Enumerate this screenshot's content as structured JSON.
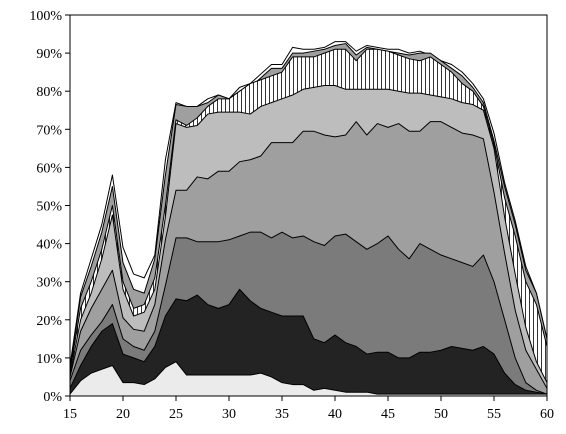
{
  "chart_data": {
    "type": "area",
    "stacked": true,
    "percent_axis": true,
    "x": [
      15,
      16,
      17,
      18,
      19,
      20,
      21,
      22,
      23,
      24,
      25,
      26,
      27,
      28,
      29,
      30,
      31,
      32,
      33,
      34,
      35,
      36,
      37,
      38,
      39,
      40,
      41,
      42,
      43,
      44,
      45,
      46,
      47,
      48,
      49,
      50,
      51,
      52,
      53,
      54,
      55,
      56,
      57,
      58,
      59,
      60
    ],
    "xlim": [
      15,
      60
    ],
    "ylim": [
      0,
      100
    ],
    "x_ticks": [
      15,
      20,
      25,
      30,
      35,
      40,
      45,
      50,
      55,
      60
    ],
    "x_tick_labels": [
      "15",
      "20",
      "25",
      "30",
      "35",
      "40",
      "45",
      "50",
      "55",
      "60"
    ],
    "y_ticks": [
      0,
      10,
      20,
      30,
      40,
      50,
      60,
      70,
      80,
      90,
      100
    ],
    "y_tick_labels": [
      "0%",
      "10%",
      "20%",
      "30%",
      "40%",
      "50%",
      "60%",
      "70%",
      "80%",
      "90%",
      "100%"
    ],
    "grid": false,
    "cumulative": [
      {
        "fill": "#ebebeb",
        "values": [
          0.5,
          4,
          6,
          7,
          8,
          3.5,
          3.5,
          3,
          4.5,
          7.5,
          9,
          5.5,
          5.5,
          5.5,
          5.5,
          5.5,
          5.5,
          5.5,
          6,
          5,
          3.5,
          3,
          3,
          1.5,
          2,
          1.5,
          1,
          1,
          1,
          0.5,
          0.5,
          0.5,
          0.5,
          0.5,
          0.5,
          0.5,
          0.5,
          0.5,
          0.5,
          0.5,
          0.5,
          0.5,
          0.5,
          0.5,
          0.5,
          0.5
        ]
      },
      {
        "fill": "#232323",
        "values": [
          2,
          8,
          13,
          17,
          19,
          11,
          10,
          9,
          13,
          21,
          25.5,
          25,
          26.5,
          24,
          23,
          24,
          28,
          25,
          23,
          22,
          21,
          21,
          21,
          15,
          14,
          16,
          14,
          13,
          11,
          11.5,
          11.5,
          10,
          10,
          11.5,
          11.5,
          12,
          13,
          12.5,
          12,
          13,
          11,
          6,
          3,
          1.5,
          1,
          0.5
        ]
      },
      {
        "fill": "#7b7b7b",
        "values": [
          4,
          12,
          16,
          19.5,
          24,
          15,
          13,
          12,
          17,
          29,
          41.5,
          41.5,
          40.5,
          40.5,
          40.5,
          41,
          42,
          43,
          43,
          41.5,
          43,
          41.5,
          42,
          40.5,
          39.5,
          42,
          42.5,
          40.5,
          38.5,
          40,
          42,
          38.5,
          36,
          40,
          38.5,
          37,
          36,
          35,
          34,
          37,
          30,
          20,
          10,
          3.5,
          1.5,
          0.5
        ]
      },
      {
        "fill": "#9f9f9f",
        "values": [
          5,
          17,
          23,
          28,
          33,
          20.5,
          17.5,
          17,
          24,
          41,
          54,
          54,
          57.5,
          57,
          59,
          59,
          61.5,
          62,
          63,
          66.5,
          66.5,
          66.5,
          69.5,
          69.5,
          68.5,
          68,
          68.5,
          72,
          68.5,
          71.5,
          70.5,
          71.5,
          69.5,
          69.5,
          72,
          72,
          70.5,
          69,
          68.5,
          67.5,
          53.5,
          37.5,
          22.5,
          12,
          7,
          2
        ]
      },
      {
        "fill": "#bdbdbd",
        "values": [
          5.5,
          20,
          27,
          36,
          47.5,
          28,
          21,
          22,
          28,
          47,
          71.5,
          70.5,
          71,
          74,
          74.5,
          74.5,
          74.5,
          74,
          76,
          77,
          78,
          79,
          80.5,
          81,
          81.5,
          81.5,
          80.5,
          80.5,
          80.5,
          80.5,
          80.5,
          80,
          79.5,
          79.5,
          79,
          78.5,
          78,
          77,
          76.5,
          75,
          65,
          47,
          32,
          18,
          9,
          3.5
        ]
      },
      {
        "fill": "#ffffff",
        "hatch": true,
        "values": [
          6.5,
          23,
          30,
          38.5,
          50,
          30,
          23,
          24,
          31,
          50,
          72.5,
          71,
          73,
          76,
          78,
          78,
          80,
          82,
          83,
          84,
          85,
          89,
          89,
          89,
          90,
          91,
          91,
          88,
          91,
          91,
          90.5,
          89.5,
          88.5,
          88,
          89,
          87,
          85,
          82,
          80,
          76,
          66,
          52,
          42,
          30,
          24,
          13
        ]
      },
      {
        "fill": "#9f9f9f",
        "values": [
          7,
          26,
          34,
          43,
          55,
          35,
          28,
          27,
          36,
          58,
          76.5,
          76,
          76,
          77,
          79,
          78,
          80,
          81,
          83.5,
          86,
          86,
          90,
          90,
          90.5,
          91,
          92,
          92.5,
          89.5,
          91.5,
          91,
          90.5,
          90,
          89.5,
          90,
          90,
          88,
          86,
          84,
          81,
          77,
          67,
          55,
          45,
          33,
          27,
          15
        ]
      },
      {
        "fill": "#ffffff",
        "values": [
          8,
          27,
          36,
          45,
          58,
          39,
          32,
          31,
          37,
          62,
          77,
          76,
          76,
          78,
          79,
          78,
          81,
          82,
          84.5,
          87,
          87,
          91.5,
          91,
          91,
          91.5,
          93,
          93,
          90.5,
          92,
          91.5,
          91,
          91,
          90,
          90.5,
          89.5,
          88,
          87,
          85,
          82,
          78,
          69,
          56,
          46,
          34,
          27,
          15
        ]
      }
    ]
  }
}
